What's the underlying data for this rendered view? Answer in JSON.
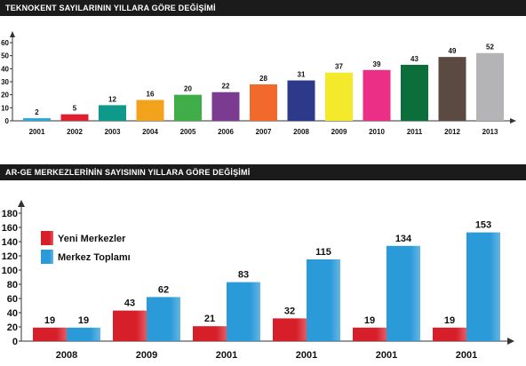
{
  "chart_data": [
    {
      "type": "bar",
      "title": "TEKNOKENT SAYILARININ YILLARA GÖRE DEĞİŞİMİ",
      "categories": [
        "2001",
        "2002",
        "2003",
        "2004",
        "2005",
        "2006",
        "2007",
        "2008",
        "2009",
        "2010",
        "2011",
        "2012",
        "2013"
      ],
      "values": [
        2,
        5,
        12,
        16,
        20,
        22,
        28,
        31,
        37,
        39,
        43,
        49,
        52
      ],
      "colors": [
        "#29a8dd",
        "#e0202e",
        "#0e9a8a",
        "#f3a21c",
        "#3fae49",
        "#7a3b91",
        "#f26a2b",
        "#2d3a8c",
        "#f4e92a",
        "#ec2f86",
        "#0b6e3b",
        "#5a4a42",
        "#b4b4b6"
      ],
      "ylim": [
        0,
        60
      ],
      "yticks": [
        0,
        10,
        20,
        30,
        40,
        50,
        60
      ],
      "grid": false,
      "xlabel": "",
      "ylabel": ""
    },
    {
      "type": "bar",
      "title": "AR-GE MERKEZLERİNİN SAYISININ YILLARA GÖRE DEĞİŞİMİ",
      "categories": [
        "2008",
        "2009",
        "2001",
        "2001",
        "2001",
        "2001"
      ],
      "series": [
        {
          "name": "Yeni Merkezler",
          "values": [
            19,
            43,
            21,
            32,
            19,
            19
          ],
          "color": "#d71f2a"
        },
        {
          "name": "Merkez Toplamı",
          "values": [
            19,
            62,
            83,
            115,
            134,
            153
          ],
          "color": "#2a9ad8"
        }
      ],
      "ylim": [
        0,
        180
      ],
      "yticks": [
        0,
        20,
        40,
        60,
        80,
        100,
        120,
        140,
        160,
        180
      ],
      "legend": "top-left",
      "grid": false,
      "xlabel": "",
      "ylabel": ""
    }
  ]
}
